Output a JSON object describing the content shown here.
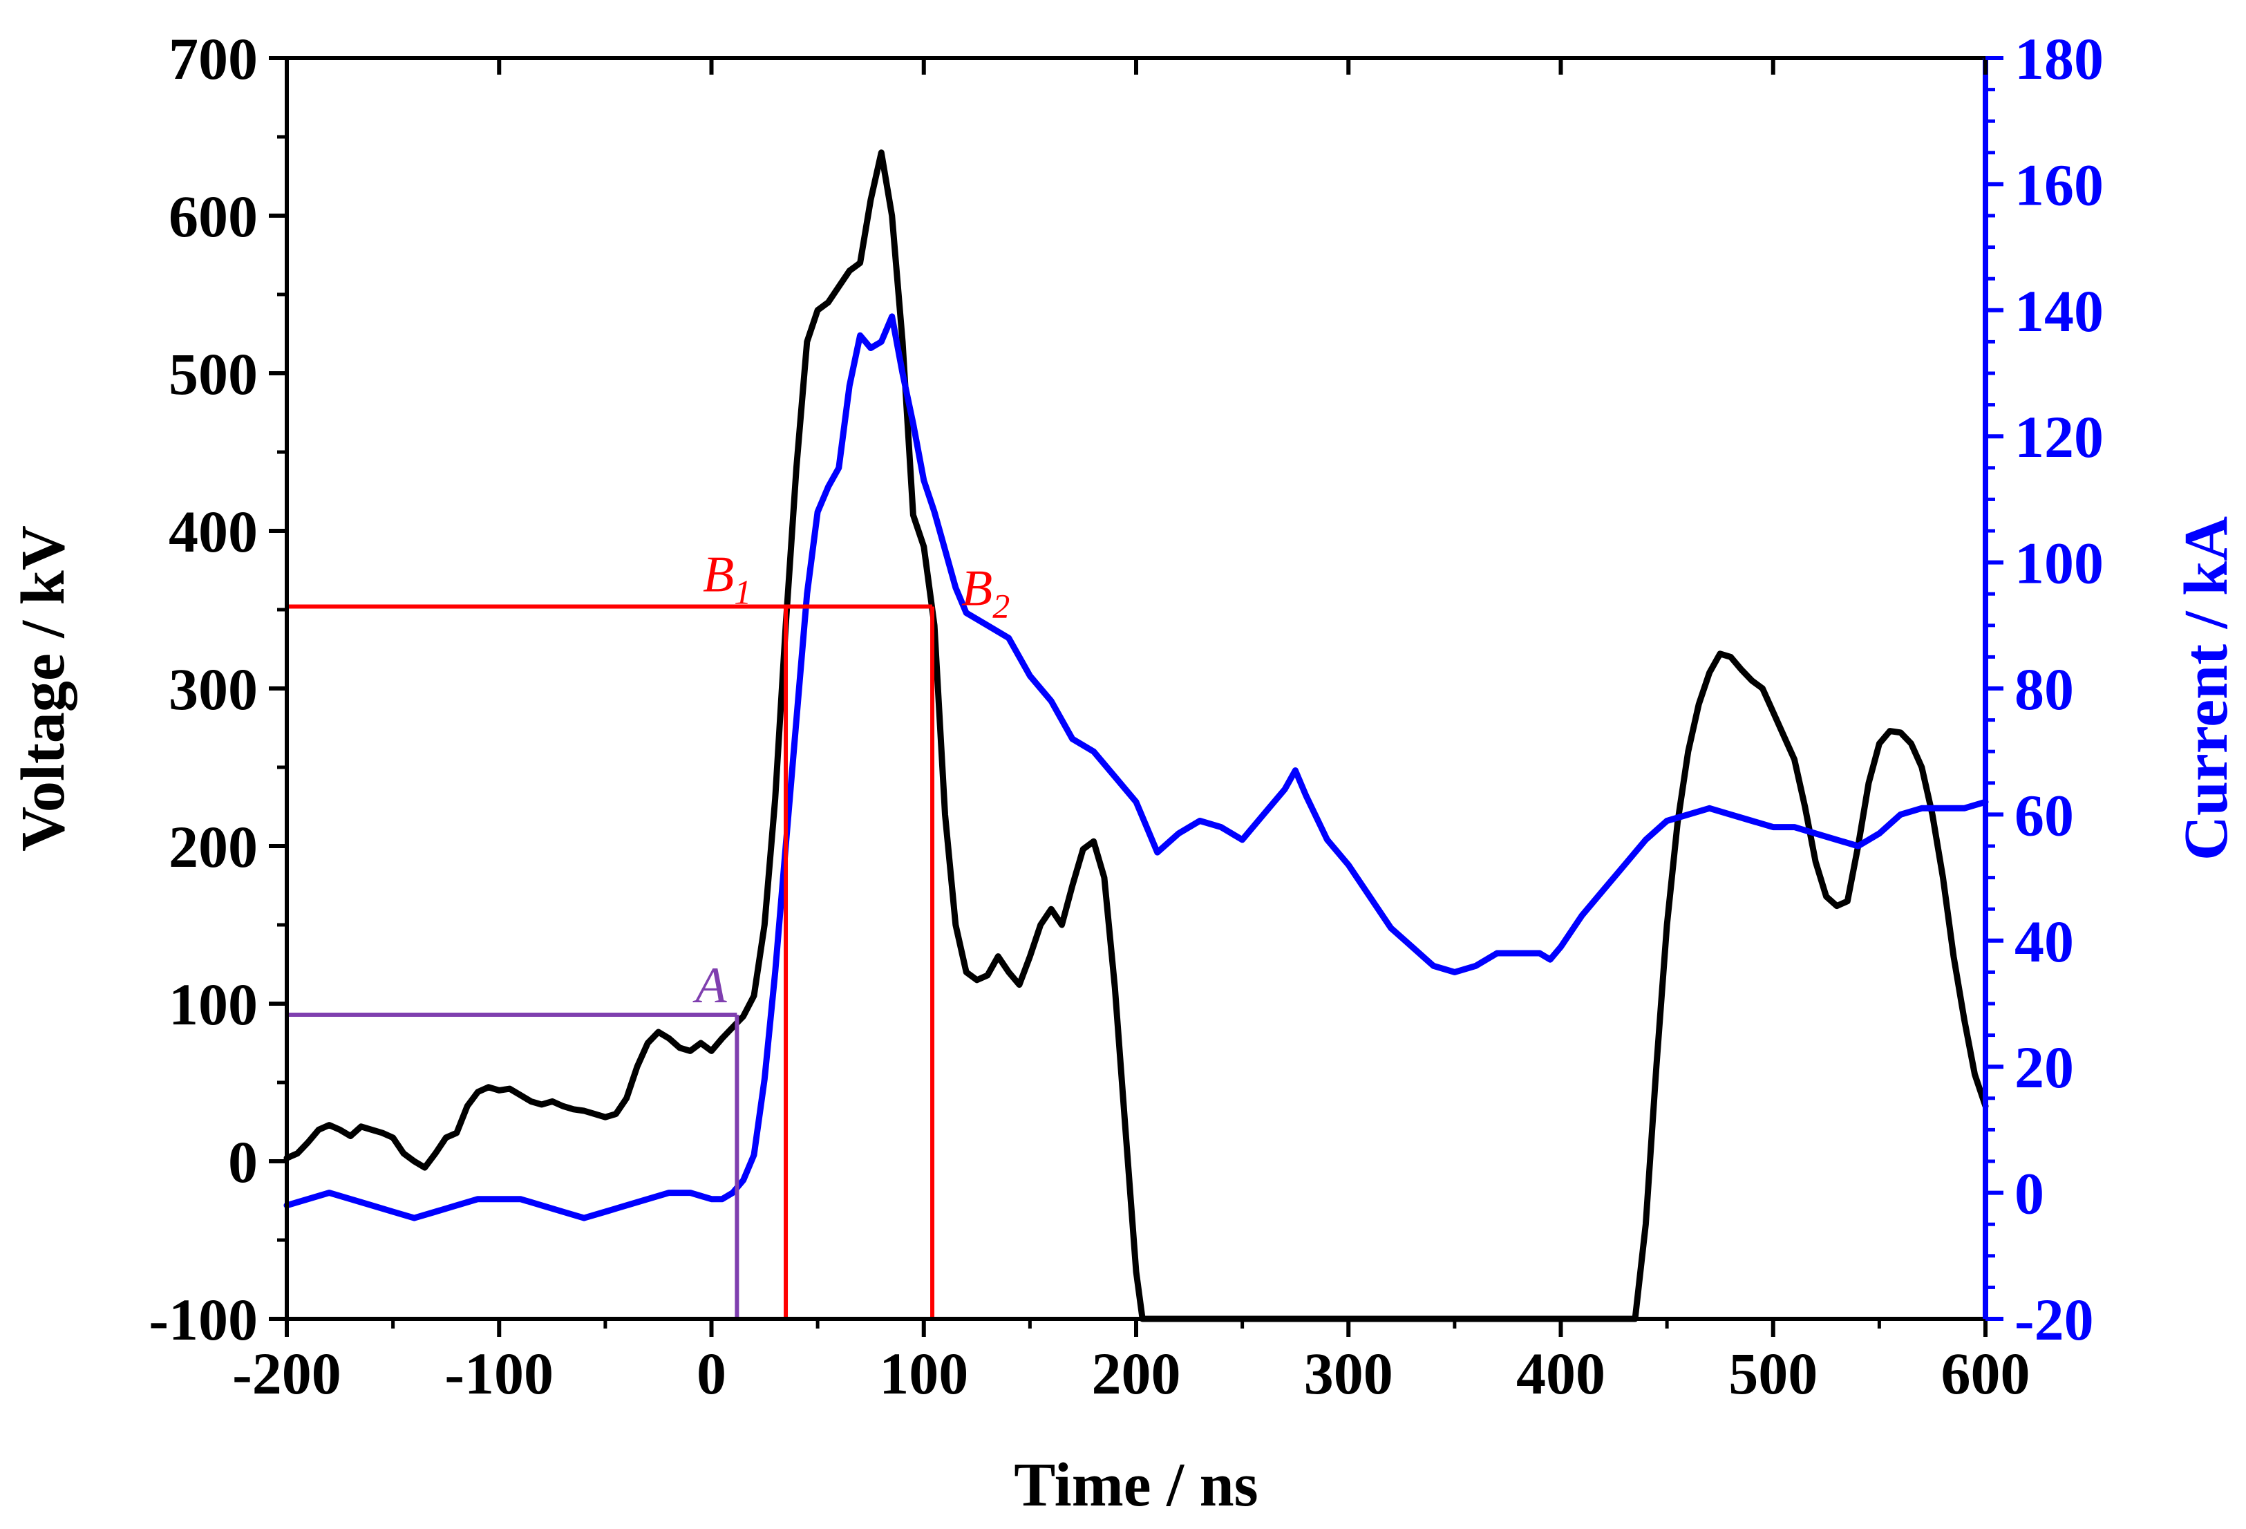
{
  "chart_data": {
    "type": "line",
    "title": "",
    "xlabel": "Time / ns",
    "ylabel_left": "Voltage / kV",
    "ylabel_right": "Current / kA",
    "xlim": [
      -200,
      600
    ],
    "ylim_left": [
      -100,
      700
    ],
    "ylim_right": [
      -20,
      180
    ],
    "x_ticks": [
      -200,
      -100,
      0,
      100,
      200,
      300,
      400,
      500,
      600
    ],
    "x_tick_labels": [
      "-200",
      "-100",
      "0",
      "100",
      "200",
      "300",
      "400",
      "500",
      "600"
    ],
    "y_left_ticks": [
      -100,
      0,
      100,
      200,
      300,
      400,
      500,
      600,
      700
    ],
    "y_left_tick_labels": [
      "-100",
      "0",
      "100",
      "200",
      "300",
      "400",
      "500",
      "600",
      "700"
    ],
    "y_right_ticks": [
      -20,
      0,
      20,
      40,
      60,
      80,
      100,
      120,
      140,
      160,
      180
    ],
    "y_right_tick_labels": [
      "-20",
      "0",
      "20",
      "40",
      "60",
      "80",
      "100",
      "120",
      "140",
      "160",
      "180"
    ],
    "grid": false,
    "series": [
      {
        "name": "Voltage",
        "axis": "left",
        "color": "#000000",
        "points": [
          [
            -200,
            2
          ],
          [
            -195,
            5
          ],
          [
            -190,
            12
          ],
          [
            -185,
            20
          ],
          [
            -180,
            23
          ],
          [
            -175,
            20
          ],
          [
            -170,
            16
          ],
          [
            -165,
            22
          ],
          [
            -160,
            20
          ],
          [
            -155,
            18
          ],
          [
            -150,
            15
          ],
          [
            -145,
            5
          ],
          [
            -140,
            0
          ],
          [
            -135,
            -4
          ],
          [
            -130,
            5
          ],
          [
            -125,
            15
          ],
          [
            -120,
            18
          ],
          [
            -115,
            35
          ],
          [
            -110,
            44
          ],
          [
            -105,
            47
          ],
          [
            -100,
            45
          ],
          [
            -95,
            46
          ],
          [
            -90,
            42
          ],
          [
            -85,
            38
          ],
          [
            -80,
            36
          ],
          [
            -75,
            38
          ],
          [
            -70,
            35
          ],
          [
            -65,
            33
          ],
          [
            -60,
            32
          ],
          [
            -55,
            30
          ],
          [
            -50,
            28
          ],
          [
            -45,
            30
          ],
          [
            -40,
            40
          ],
          [
            -35,
            60
          ],
          [
            -30,
            75
          ],
          [
            -25,
            82
          ],
          [
            -20,
            78
          ],
          [
            -15,
            72
          ],
          [
            -10,
            70
          ],
          [
            -5,
            75
          ],
          [
            0,
            70
          ],
          [
            5,
            78
          ],
          [
            10,
            85
          ],
          [
            15,
            92
          ],
          [
            20,
            105
          ],
          [
            25,
            150
          ],
          [
            30,
            230
          ],
          [
            35,
            340
          ],
          [
            40,
            440
          ],
          [
            45,
            520
          ],
          [
            50,
            540
          ],
          [
            55,
            545
          ],
          [
            60,
            555
          ],
          [
            65,
            565
          ],
          [
            70,
            570
          ],
          [
            75,
            610
          ],
          [
            80,
            640
          ],
          [
            85,
            600
          ],
          [
            90,
            520
          ],
          [
            95,
            410
          ],
          [
            100,
            390
          ],
          [
            105,
            340
          ],
          [
            110,
            220
          ],
          [
            115,
            150
          ],
          [
            120,
            120
          ],
          [
            125,
            115
          ],
          [
            130,
            118
          ],
          [
            135,
            130
          ],
          [
            140,
            120
          ],
          [
            145,
            112
          ],
          [
            150,
            130
          ],
          [
            155,
            150
          ],
          [
            160,
            160
          ],
          [
            165,
            150
          ],
          [
            170,
            175
          ],
          [
            175,
            198
          ],
          [
            180,
            203
          ],
          [
            185,
            180
          ],
          [
            190,
            110
          ],
          [
            195,
            20
          ],
          [
            200,
            -70
          ],
          [
            203,
            -100
          ],
          [
            435,
            -100
          ],
          [
            440,
            -40
          ],
          [
            445,
            60
          ],
          [
            450,
            150
          ],
          [
            455,
            215
          ],
          [
            460,
            260
          ],
          [
            465,
            290
          ],
          [
            470,
            310
          ],
          [
            475,
            322
          ],
          [
            480,
            320
          ],
          [
            485,
            312
          ],
          [
            490,
            305
          ],
          [
            495,
            300
          ],
          [
            500,
            285
          ],
          [
            505,
            270
          ],
          [
            510,
            255
          ],
          [
            515,
            225
          ],
          [
            520,
            190
          ],
          [
            525,
            168
          ],
          [
            530,
            162
          ],
          [
            535,
            165
          ],
          [
            540,
            200
          ],
          [
            545,
            240
          ],
          [
            550,
            265
          ],
          [
            555,
            273
          ],
          [
            560,
            272
          ],
          [
            565,
            265
          ],
          [
            570,
            250
          ],
          [
            575,
            220
          ],
          [
            580,
            180
          ],
          [
            585,
            130
          ],
          [
            590,
            90
          ],
          [
            595,
            55
          ],
          [
            600,
            35
          ]
        ]
      },
      {
        "name": "Current",
        "axis": "right",
        "color": "#0000ff",
        "points": [
          [
            -200,
            -2
          ],
          [
            -190,
            -1
          ],
          [
            -180,
            0
          ],
          [
            -170,
            -1
          ],
          [
            -160,
            -2
          ],
          [
            -150,
            -3
          ],
          [
            -140,
            -4
          ],
          [
            -130,
            -3
          ],
          [
            -120,
            -2
          ],
          [
            -110,
            -1
          ],
          [
            -100,
            -1
          ],
          [
            -90,
            -1
          ],
          [
            -80,
            -2
          ],
          [
            -70,
            -3
          ],
          [
            -60,
            -4
          ],
          [
            -50,
            -3
          ],
          [
            -40,
            -2
          ],
          [
            -30,
            -1
          ],
          [
            -20,
            0
          ],
          [
            -10,
            0
          ],
          [
            0,
            -1
          ],
          [
            5,
            -1
          ],
          [
            10,
            0
          ],
          [
            15,
            2
          ],
          [
            20,
            6
          ],
          [
            25,
            18
          ],
          [
            30,
            35
          ],
          [
            35,
            55
          ],
          [
            40,
            75
          ],
          [
            45,
            95
          ],
          [
            50,
            108
          ],
          [
            55,
            112
          ],
          [
            60,
            115
          ],
          [
            65,
            128
          ],
          [
            70,
            136
          ],
          [
            75,
            134
          ],
          [
            80,
            135
          ],
          [
            85,
            139
          ],
          [
            90,
            130
          ],
          [
            95,
            122
          ],
          [
            100,
            113
          ],
          [
            105,
            108
          ],
          [
            110,
            102
          ],
          [
            115,
            96
          ],
          [
            120,
            92
          ],
          [
            130,
            90
          ],
          [
            140,
            88
          ],
          [
            150,
            82
          ],
          [
            160,
            78
          ],
          [
            170,
            72
          ],
          [
            180,
            70
          ],
          [
            190,
            66
          ],
          [
            200,
            62
          ],
          [
            210,
            54
          ],
          [
            220,
            57
          ],
          [
            230,
            59
          ],
          [
            240,
            58
          ],
          [
            250,
            56
          ],
          [
            260,
            60
          ],
          [
            270,
            64
          ],
          [
            275,
            67
          ],
          [
            280,
            63
          ],
          [
            290,
            56
          ],
          [
            300,
            52
          ],
          [
            310,
            47
          ],
          [
            320,
            42
          ],
          [
            330,
            39
          ],
          [
            340,
            36
          ],
          [
            350,
            35
          ],
          [
            360,
            36
          ],
          [
            370,
            38
          ],
          [
            380,
            38
          ],
          [
            390,
            38
          ],
          [
            395,
            37
          ],
          [
            400,
            39
          ],
          [
            410,
            44
          ],
          [
            420,
            48
          ],
          [
            430,
            52
          ],
          [
            440,
            56
          ],
          [
            450,
            59
          ],
          [
            460,
            60
          ],
          [
            470,
            61
          ],
          [
            480,
            60
          ],
          [
            490,
            59
          ],
          [
            500,
            58
          ],
          [
            510,
            58
          ],
          [
            520,
            57
          ],
          [
            530,
            56
          ],
          [
            540,
            55
          ],
          [
            550,
            57
          ],
          [
            560,
            60
          ],
          [
            570,
            61
          ],
          [
            580,
            61
          ],
          [
            590,
            61
          ],
          [
            600,
            62
          ]
        ]
      }
    ],
    "annotations": [
      {
        "label": "A",
        "sub": "",
        "color": "#7f3faf",
        "x": 12,
        "y_left": 93
      },
      {
        "label": "B",
        "sub": "1",
        "color": "#ff0000",
        "x": 35,
        "y_left": 352
      },
      {
        "label": "B",
        "sub": "2",
        "color": "#ff0000",
        "x": 104,
        "y_left": 352
      }
    ]
  }
}
